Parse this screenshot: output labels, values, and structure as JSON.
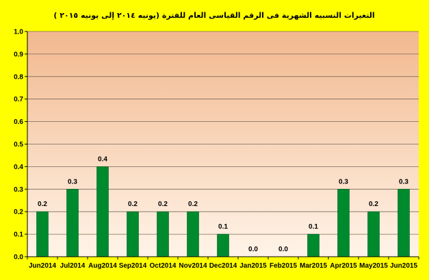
{
  "chart_data": {
    "type": "bar",
    "title": "التغيرات النسبيه الشهرية فى الرقم القياسى العام للفترة (يونيه ٢٠١٤ إلى يونيه ٢٠١٥ )",
    "xlabel": "",
    "ylabel": "",
    "categories": [
      "Jun2014",
      "Jul2014",
      "Aug2014",
      "Sep2014",
      "Oct2014",
      "Nov2014",
      "Dec2014",
      "Jan2015",
      "Feb2015",
      "Mar2015",
      "Apr2015",
      "May2015",
      "Jun2015"
    ],
    "values": [
      0.2,
      0.3,
      0.4,
      0.2,
      0.2,
      0.2,
      0.1,
      0.0,
      0.0,
      0.1,
      0.3,
      0.2,
      0.3
    ],
    "value_labels": [
      "0.2",
      "0.3",
      "0.4",
      "0.2",
      "0.2",
      "0.2",
      "0.1",
      "0.0",
      "0.0",
      "0.1",
      "0.3",
      "0.2",
      "0.3"
    ],
    "y_ticks": [
      "0.0",
      "0.1",
      "0.2",
      "0.3",
      "0.4",
      "0.5",
      "0.6",
      "0.7",
      "0.8",
      "0.9",
      "1.0"
    ],
    "ylim": [
      0,
      1
    ],
    "grid": true,
    "legend": "none",
    "colors": {
      "background": "#ffff00",
      "bar": "#008a2e",
      "bar_stroke": "#005c1e",
      "plot_top": "#f2b88e",
      "plot_bottom": "#fff4e8",
      "gridline": "#7a6a5a"
    }
  }
}
